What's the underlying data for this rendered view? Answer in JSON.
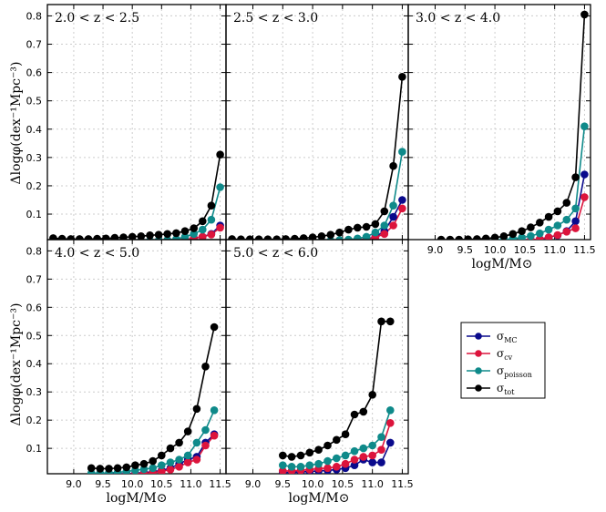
{
  "figure": {
    "ylabel": "Δlogφ(dex⁻¹Mpc⁻³)",
    "xlabel": "logM/M⊙"
  },
  "legend": {
    "entries": [
      {
        "label": "σ_MC",
        "main": "σ",
        "sub": "MC"
      },
      {
        "label": "σ_cv",
        "main": "σ",
        "sub": "cv"
      },
      {
        "label": "σ_poisson",
        "main": "σ",
        "sub": "poisson"
      },
      {
        "label": "σ_tot",
        "main": "σ",
        "sub": "tot"
      }
    ]
  },
  "axes": {
    "x_ticks": [
      "9.0",
      "9.5",
      "10.0",
      "10.5",
      "11.0",
      "11.5"
    ],
    "y_ticks": [
      "0.1",
      "0.2",
      "0.3",
      "0.4",
      "0.5",
      "0.6",
      "0.7",
      "0.8"
    ]
  },
  "chart_data": [
    {
      "type": "line",
      "title": "2.0 < z < 2.5",
      "xlim": [
        8.55,
        11.6
      ],
      "ylim": [
        0.01,
        0.84
      ],
      "series": [
        {
          "name": "σ_MC",
          "color": "#0a0a8c",
          "x": [
            8.65,
            8.8,
            8.95,
            9.1,
            9.25,
            9.4,
            9.55,
            9.7,
            9.85,
            10.0,
            10.15,
            10.3,
            10.45,
            10.6,
            10.75,
            10.9,
            11.05,
            11.2,
            11.35,
            11.5
          ],
          "y": [
            0.005,
            0.005,
            0.005,
            0.005,
            0.005,
            0.005,
            0.005,
            0.005,
            0.005,
            0.005,
            0.005,
            0.005,
            0.005,
            0.006,
            0.008,
            0.01,
            0.015,
            0.02,
            0.03,
            0.06
          ]
        },
        {
          "name": "σ_cv",
          "color": "#dc143c",
          "x": [
            8.65,
            8.8,
            8.95,
            9.1,
            9.25,
            9.4,
            9.55,
            9.7,
            9.85,
            10.0,
            10.15,
            10.3,
            10.45,
            10.6,
            10.75,
            10.9,
            11.05,
            11.2,
            11.35,
            11.5
          ],
          "y": [
            0.003,
            0.003,
            0.003,
            0.003,
            0.003,
            0.003,
            0.003,
            0.003,
            0.003,
            0.003,
            0.003,
            0.003,
            0.004,
            0.005,
            0.007,
            0.01,
            0.015,
            0.02,
            0.028,
            0.052
          ]
        },
        {
          "name": "σ_poisson",
          "color": "#0f8a8a",
          "x": [
            8.65,
            8.8,
            8.95,
            9.1,
            9.25,
            9.4,
            9.55,
            9.7,
            9.85,
            10.0,
            10.15,
            10.3,
            10.45,
            10.6,
            10.75,
            10.9,
            11.05,
            11.2,
            11.35,
            11.5
          ],
          "y": [
            0.005,
            0.005,
            0.005,
            0.005,
            0.005,
            0.005,
            0.005,
            0.005,
            0.005,
            0.005,
            0.005,
            0.006,
            0.007,
            0.009,
            0.012,
            0.02,
            0.03,
            0.045,
            0.08,
            0.195
          ]
        },
        {
          "name": "σ_tot",
          "color": "#000000",
          "x": [
            8.65,
            8.8,
            8.95,
            9.1,
            9.25,
            9.4,
            9.55,
            9.7,
            9.85,
            10.0,
            10.15,
            10.3,
            10.45,
            10.6,
            10.75,
            10.9,
            11.05,
            11.2,
            11.35,
            11.5
          ],
          "y": [
            0.015,
            0.013,
            0.012,
            0.012,
            0.012,
            0.013,
            0.014,
            0.016,
            0.018,
            0.02,
            0.022,
            0.025,
            0.027,
            0.03,
            0.033,
            0.04,
            0.05,
            0.075,
            0.13,
            0.31
          ]
        }
      ]
    },
    {
      "type": "line",
      "title": "2.5 < z < 3.0",
      "xlim": [
        8.55,
        11.6
      ],
      "ylim": [
        0.01,
        0.84
      ],
      "series": [
        {
          "name": "σ_MC",
          "color": "#0a0a8c",
          "x": [
            8.65,
            8.8,
            8.95,
            9.1,
            9.25,
            9.4,
            9.55,
            9.7,
            9.85,
            10.0,
            10.15,
            10.3,
            10.45,
            10.6,
            10.75,
            10.9,
            11.05,
            11.2,
            11.35,
            11.5
          ],
          "y": [
            0.004,
            0.004,
            0.004,
            0.004,
            0.004,
            0.004,
            0.004,
            0.004,
            0.004,
            0.004,
            0.004,
            0.004,
            0.005,
            0.006,
            0.008,
            0.012,
            0.02,
            0.04,
            0.09,
            0.15
          ]
        },
        {
          "name": "σ_cv",
          "color": "#dc143c",
          "x": [
            8.65,
            8.8,
            8.95,
            9.1,
            9.25,
            9.4,
            9.55,
            9.7,
            9.85,
            10.0,
            10.15,
            10.3,
            10.45,
            10.6,
            10.75,
            10.9,
            11.05,
            11.2,
            11.35,
            11.5
          ],
          "y": [
            0.003,
            0.003,
            0.003,
            0.003,
            0.003,
            0.003,
            0.003,
            0.003,
            0.003,
            0.003,
            0.003,
            0.004,
            0.005,
            0.006,
            0.008,
            0.012,
            0.018,
            0.03,
            0.06,
            0.12
          ]
        },
        {
          "name": "σ_poisson",
          "color": "#0f8a8a",
          "x": [
            8.65,
            8.8,
            8.95,
            9.1,
            9.25,
            9.4,
            9.55,
            9.7,
            9.85,
            10.0,
            10.15,
            10.3,
            10.45,
            10.6,
            10.75,
            10.9,
            11.05,
            11.2,
            11.35,
            11.5
          ],
          "y": [
            0.004,
            0.004,
            0.004,
            0.004,
            0.004,
            0.004,
            0.004,
            0.004,
            0.004,
            0.004,
            0.005,
            0.006,
            0.008,
            0.01,
            0.014,
            0.02,
            0.035,
            0.06,
            0.13,
            0.32
          ]
        },
        {
          "name": "σ_tot",
          "color": "#000000",
          "x": [
            8.65,
            8.8,
            8.95,
            9.1,
            9.25,
            9.4,
            9.55,
            9.7,
            9.85,
            10.0,
            10.15,
            10.3,
            10.45,
            10.6,
            10.75,
            10.9,
            11.05,
            11.2,
            11.35,
            11.5
          ],
          "y": [
            0.012,
            0.011,
            0.011,
            0.011,
            0.011,
            0.011,
            0.012,
            0.013,
            0.015,
            0.018,
            0.022,
            0.027,
            0.035,
            0.045,
            0.052,
            0.055,
            0.065,
            0.11,
            0.27,
            0.585
          ]
        }
      ]
    },
    {
      "type": "line",
      "title": "3.0 < z < 4.0",
      "xlim": [
        8.55,
        11.6
      ],
      "ylim": [
        0.01,
        0.84
      ],
      "series": [
        {
          "name": "σ_MC",
          "color": "#0a0a8c",
          "x": [
            9.1,
            9.25,
            9.4,
            9.55,
            9.7,
            9.85,
            10.0,
            10.15,
            10.3,
            10.45,
            10.6,
            10.75,
            10.9,
            11.05,
            11.2,
            11.35,
            11.5
          ],
          "y": [
            0.004,
            0.004,
            0.004,
            0.004,
            0.004,
            0.004,
            0.005,
            0.005,
            0.006,
            0.007,
            0.009,
            0.012,
            0.018,
            0.025,
            0.04,
            0.075,
            0.24
          ]
        },
        {
          "name": "σ_cv",
          "color": "#dc143c",
          "x": [
            9.1,
            9.25,
            9.4,
            9.55,
            9.7,
            9.85,
            10.0,
            10.15,
            10.3,
            10.45,
            10.6,
            10.75,
            10.9,
            11.05,
            11.2,
            11.35,
            11.5
          ],
          "y": [
            0.003,
            0.003,
            0.003,
            0.003,
            0.003,
            0.003,
            0.003,
            0.004,
            0.005,
            0.006,
            0.008,
            0.012,
            0.018,
            0.026,
            0.038,
            0.05,
            0.16
          ]
        },
        {
          "name": "σ_poisson",
          "color": "#0f8a8a",
          "x": [
            9.1,
            9.25,
            9.4,
            9.55,
            9.7,
            9.85,
            10.0,
            10.15,
            10.3,
            10.45,
            10.6,
            10.75,
            10.9,
            11.05,
            11.2,
            11.35,
            11.5
          ],
          "y": [
            0.004,
            0.004,
            0.004,
            0.004,
            0.005,
            0.006,
            0.008,
            0.01,
            0.013,
            0.017,
            0.023,
            0.032,
            0.045,
            0.06,
            0.08,
            0.12,
            0.41
          ]
        },
        {
          "name": "σ_tot",
          "color": "#000000",
          "x": [
            9.1,
            9.25,
            9.4,
            9.55,
            9.7,
            9.85,
            10.0,
            10.15,
            10.3,
            10.45,
            10.6,
            10.75,
            10.9,
            11.05,
            11.2,
            11.35,
            11.5
          ],
          "y": [
            0.01,
            0.01,
            0.01,
            0.011,
            0.012,
            0.014,
            0.017,
            0.022,
            0.03,
            0.04,
            0.053,
            0.07,
            0.09,
            0.11,
            0.14,
            0.23,
            0.805
          ]
        }
      ]
    },
    {
      "type": "line",
      "title": "4.0 < z < 5.0",
      "xlim": [
        8.55,
        11.6
      ],
      "ylim": [
        0.01,
        0.84
      ],
      "series": [
        {
          "name": "σ_MC",
          "color": "#0a0a8c",
          "x": [
            9.3,
            9.45,
            9.6,
            9.75,
            9.9,
            10.05,
            10.2,
            10.35,
            10.5,
            10.65,
            10.8,
            10.95,
            11.1,
            11.25,
            11.4
          ],
          "y": [
            0.008,
            0.008,
            0.008,
            0.009,
            0.01,
            0.012,
            0.014,
            0.017,
            0.022,
            0.03,
            0.045,
            0.06,
            0.07,
            0.12,
            0.15
          ]
        },
        {
          "name": "σ_cv",
          "color": "#dc143c",
          "x": [
            9.3,
            9.45,
            9.6,
            9.75,
            9.9,
            10.05,
            10.2,
            10.35,
            10.5,
            10.65,
            10.8,
            10.95,
            11.1,
            11.25,
            11.4
          ],
          "y": [
            0.006,
            0.006,
            0.006,
            0.007,
            0.008,
            0.009,
            0.011,
            0.014,
            0.018,
            0.025,
            0.035,
            0.05,
            0.06,
            0.11,
            0.145
          ]
        },
        {
          "name": "σ_poisson",
          "color": "#0f8a8a",
          "x": [
            9.3,
            9.45,
            9.6,
            9.75,
            9.9,
            10.05,
            10.2,
            10.35,
            10.5,
            10.65,
            10.8,
            10.95,
            11.1,
            11.25,
            11.4
          ],
          "y": [
            0.012,
            0.012,
            0.013,
            0.015,
            0.018,
            0.022,
            0.026,
            0.03,
            0.04,
            0.05,
            0.06,
            0.075,
            0.12,
            0.165,
            0.235
          ]
        },
        {
          "name": "σ_tot",
          "color": "#000000",
          "x": [
            9.3,
            9.45,
            9.6,
            9.75,
            9.9,
            10.05,
            10.2,
            10.35,
            10.5,
            10.65,
            10.8,
            10.95,
            11.1,
            11.25,
            11.4
          ],
          "y": [
            0.03,
            0.028,
            0.028,
            0.03,
            0.033,
            0.04,
            0.045,
            0.055,
            0.075,
            0.1,
            0.12,
            0.16,
            0.24,
            0.39,
            0.53
          ]
        }
      ]
    },
    {
      "type": "line",
      "title": "5.0 < z < 6.0",
      "xlim": [
        8.55,
        11.6
      ],
      "ylim": [
        0.01,
        0.84
      ],
      "series": [
        {
          "name": "σ_MC",
          "color": "#0a0a8c",
          "x": [
            9.5,
            9.65,
            9.8,
            9.95,
            10.1,
            10.25,
            10.4,
            10.55,
            10.7,
            10.85,
            11.0,
            11.15,
            11.3
          ],
          "y": [
            0.015,
            0.015,
            0.016,
            0.018,
            0.02,
            0.022,
            0.025,
            0.03,
            0.04,
            0.06,
            0.05,
            0.05,
            0.12
          ]
        },
        {
          "name": "σ_cv",
          "color": "#dc143c",
          "x": [
            9.5,
            9.65,
            9.8,
            9.95,
            10.1,
            10.25,
            10.4,
            10.55,
            10.7,
            10.85,
            11.0,
            11.15,
            11.3
          ],
          "y": [
            0.02,
            0.02,
            0.022,
            0.025,
            0.028,
            0.03,
            0.035,
            0.045,
            0.06,
            0.07,
            0.075,
            0.095,
            0.19
          ]
        },
        {
          "name": "σ_poisson",
          "color": "#0f8a8a",
          "x": [
            9.5,
            9.65,
            9.8,
            9.95,
            10.1,
            10.25,
            10.4,
            10.55,
            10.7,
            10.85,
            11.0,
            11.15,
            11.3
          ],
          "y": [
            0.04,
            0.035,
            0.035,
            0.04,
            0.045,
            0.055,
            0.065,
            0.075,
            0.09,
            0.1,
            0.11,
            0.14,
            0.235
          ]
        },
        {
          "name": "σ_tot",
          "color": "#000000",
          "x": [
            9.5,
            9.65,
            9.8,
            9.95,
            10.1,
            10.25,
            10.4,
            10.55,
            10.7,
            10.85,
            11.0,
            11.15,
            11.3
          ],
          "y": [
            0.075,
            0.07,
            0.075,
            0.085,
            0.095,
            0.11,
            0.13,
            0.15,
            0.22,
            0.23,
            0.29,
            0.55,
            0.55
          ]
        }
      ]
    }
  ]
}
